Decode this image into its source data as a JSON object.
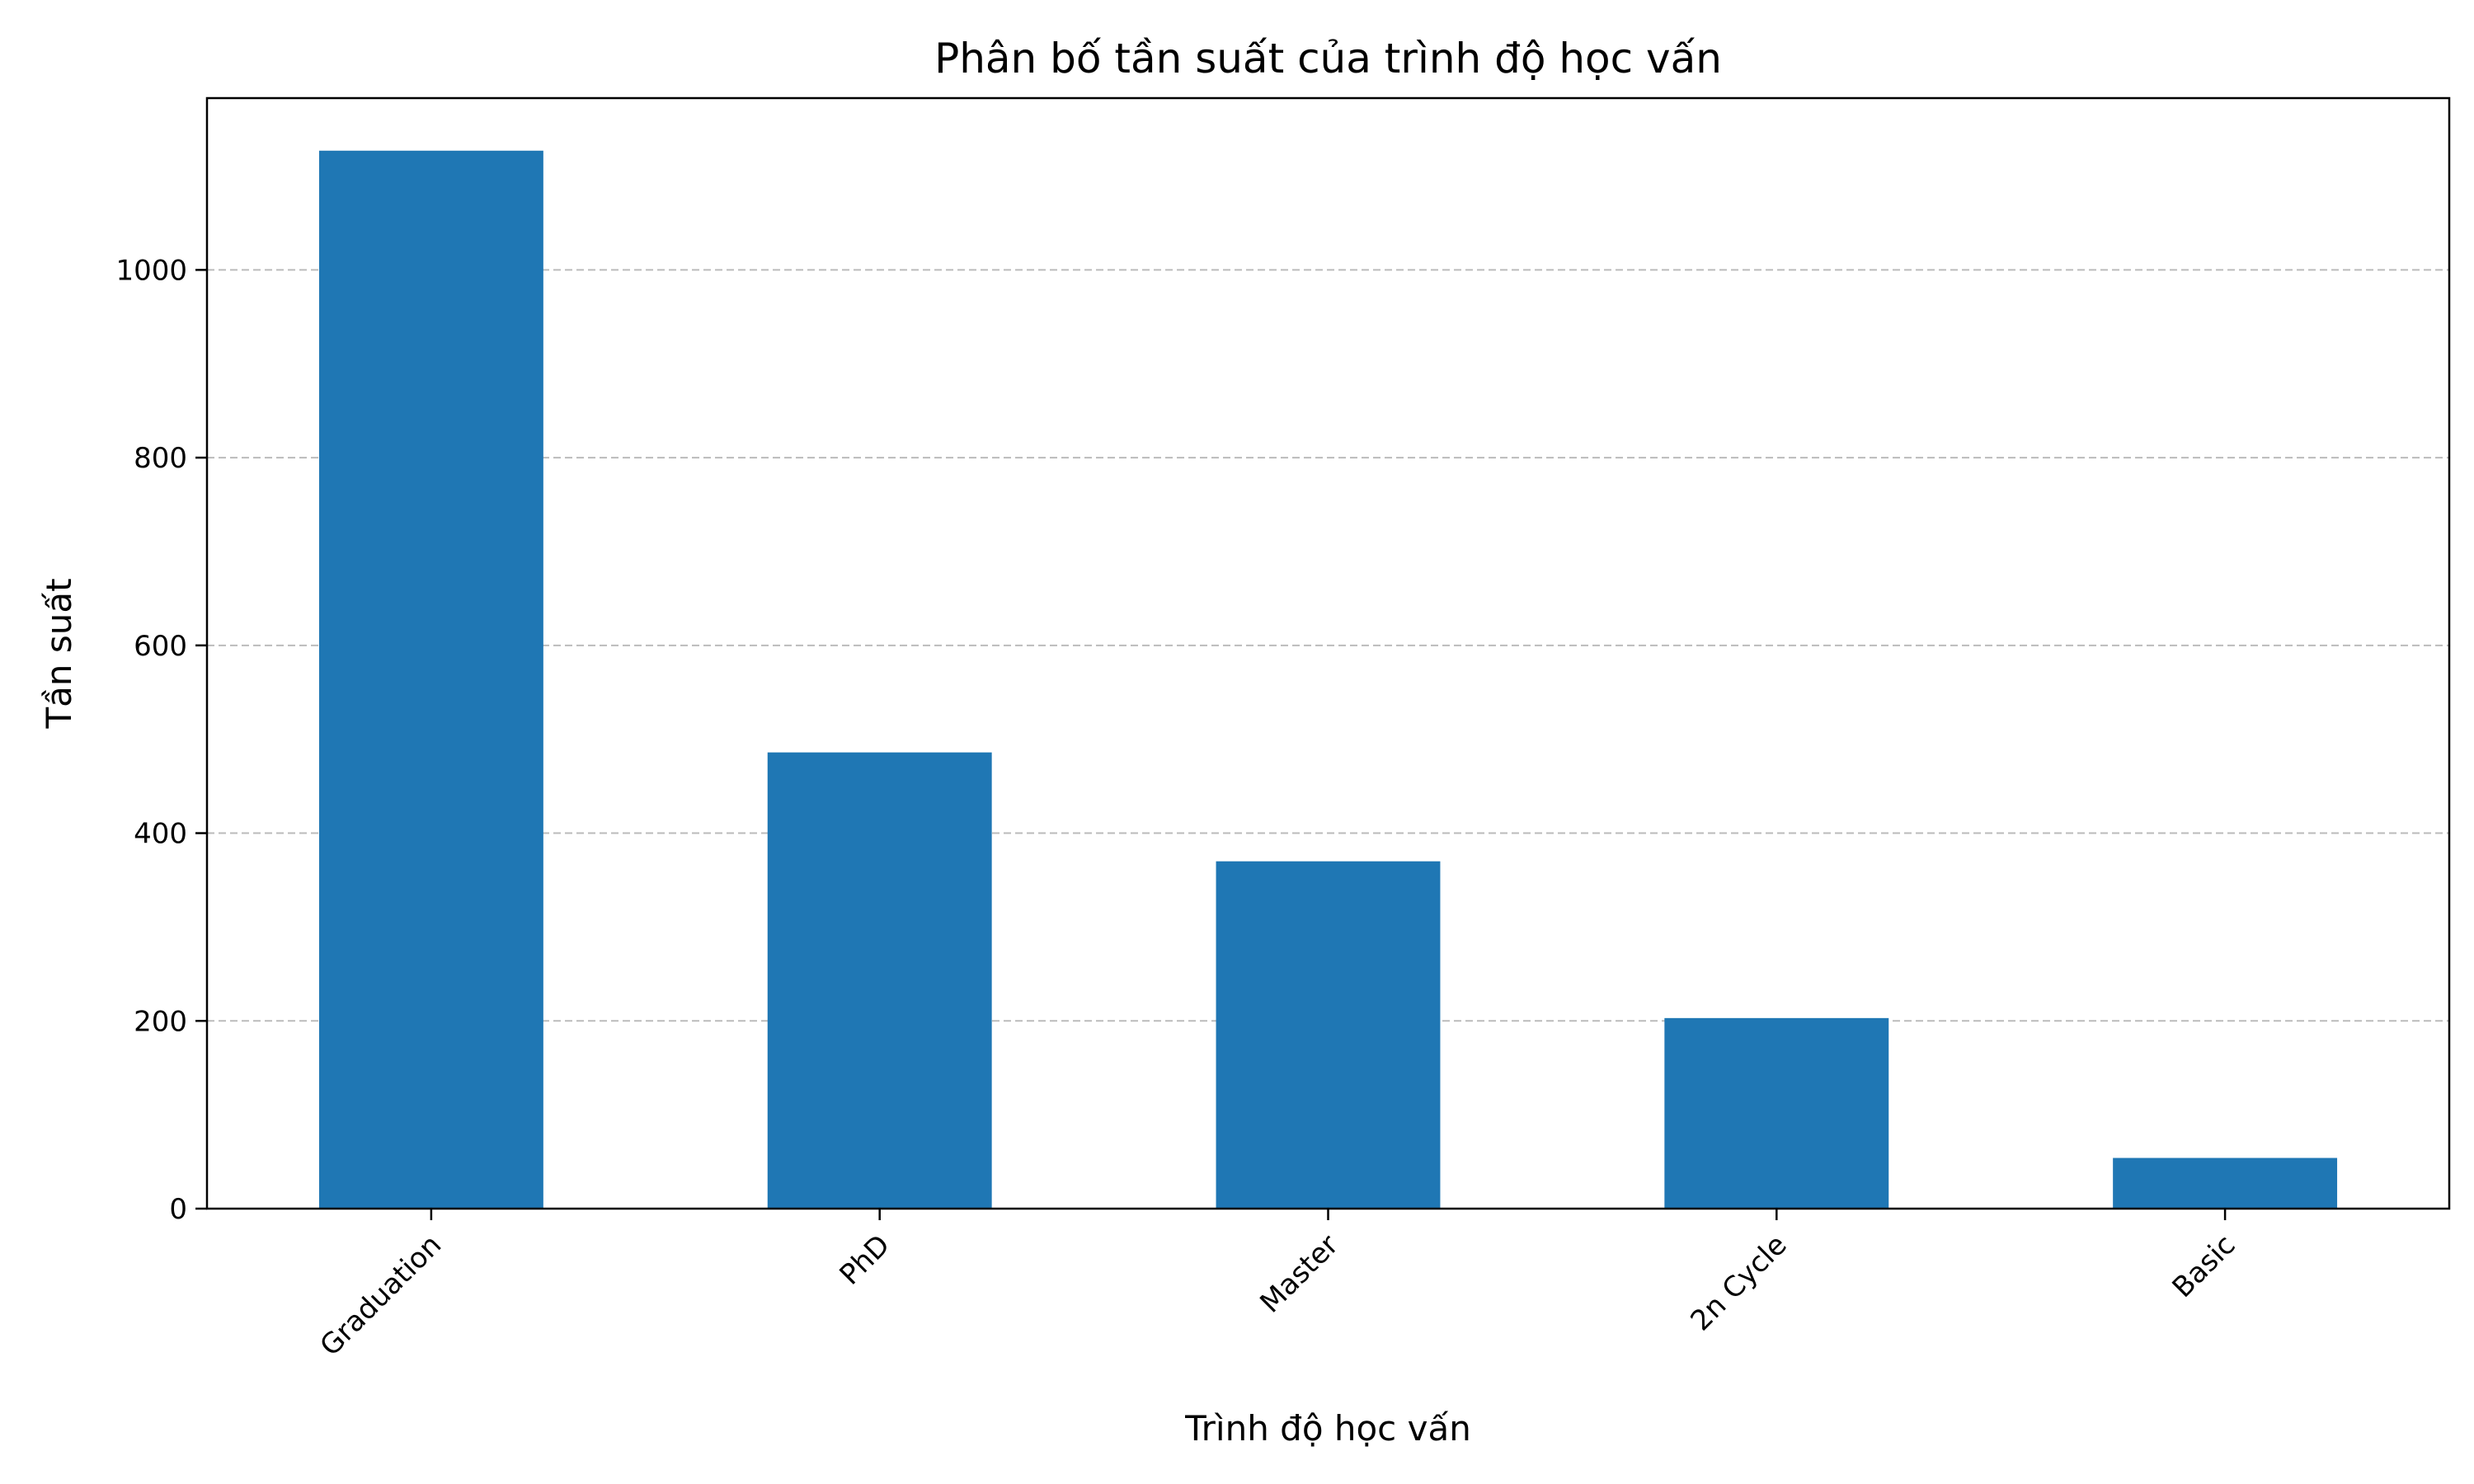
{
  "chart_data": {
    "type": "bar",
    "title": "Phân bố tần suất của trình độ học vấn",
    "xlabel": "Trình độ học vấn",
    "ylabel": "Tần suất",
    "categories": [
      "Graduation",
      "PhD",
      "Master",
      "2n Cycle",
      "Basic"
    ],
    "values": [
      1127,
      486,
      370,
      203,
      54
    ],
    "ylim": [
      0,
      1183
    ],
    "yticks": [
      0,
      200,
      400,
      600,
      800,
      1000
    ],
    "grid": "y-dashed",
    "bar_color": "#1f77b4",
    "grid_color": "#b0b0b0",
    "x_tick_rotation": 45
  }
}
